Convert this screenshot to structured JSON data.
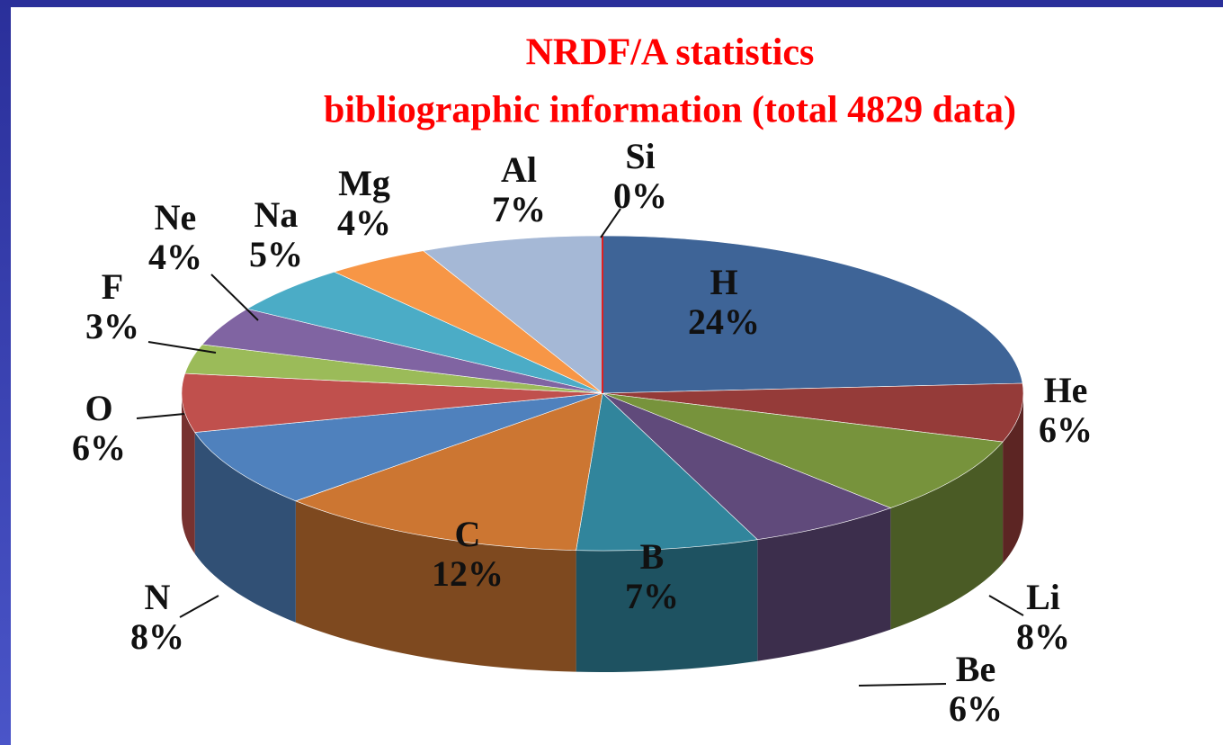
{
  "chart_data": {
    "type": "pie3d",
    "title": "NRDF/A  statistics",
    "subtitle": "bibliographic information  (total 4829 data)",
    "categories": [
      "H",
      "He",
      "Li",
      "Be",
      "B",
      "C",
      "N",
      "O",
      "F",
      "Ne",
      "Na",
      "Mg",
      "Al",
      "Si"
    ],
    "values": [
      24,
      6,
      8,
      6,
      7,
      12,
      8,
      6,
      3,
      4,
      5,
      4,
      7,
      0
    ],
    "value_labels": [
      "24%",
      "6%",
      "8%",
      "6%",
      "7%",
      "12%",
      "8%",
      "6%",
      "3%",
      "4%",
      "5%",
      "4%",
      "7%",
      "0%"
    ],
    "colors": [
      "#3e6497",
      "#953b39",
      "#77933c",
      "#604a7b",
      "#31859c",
      "#cc7632",
      "#4f81bd",
      "#c0504d",
      "#9bbb59",
      "#8064a2",
      "#4bacc6",
      "#f79646",
      "#a5b8d6",
      "#e02020"
    ]
  }
}
